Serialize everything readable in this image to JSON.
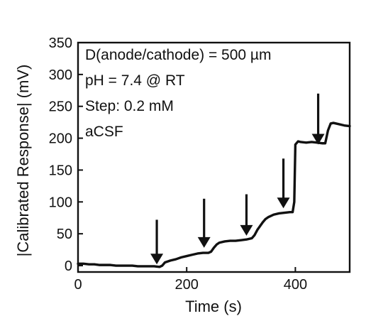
{
  "chart_data": {
    "type": "line",
    "xlabel": "Time (s)",
    "ylabel": "|Calibrated Response| (mV)",
    "xlim": [
      0,
      500
    ],
    "ylim": [
      -10,
      350
    ],
    "x_ticks": [
      0,
      200,
      400
    ],
    "y_ticks": [
      0,
      50,
      100,
      150,
      200,
      250,
      300,
      350
    ],
    "grid": false,
    "annotations": [
      "D(anode/cathode) = 500 µm",
      "pH = 7.4 @ RT",
      "Step: 0.2 mM",
      "aCSF"
    ],
    "arrows": [
      {
        "x": 145,
        "y_top": 72,
        "y_tip": 2
      },
      {
        "x": 232,
        "y_top": 105,
        "y_tip": 28
      },
      {
        "x": 310,
        "y_top": 112,
        "y_tip": 47
      },
      {
        "x": 378,
        "y_top": 168,
        "y_tip": 90
      },
      {
        "x": 442,
        "y_top": 270,
        "y_tip": 190
      }
    ],
    "series": [
      {
        "values": [
          [
            0,
            3
          ],
          [
            10,
            3
          ],
          [
            20,
            2
          ],
          [
            30,
            2
          ],
          [
            40,
            1
          ],
          [
            50,
            1
          ],
          [
            60,
            1
          ],
          [
            70,
            0
          ],
          [
            80,
            0
          ],
          [
            90,
            0
          ],
          [
            100,
            0
          ],
          [
            110,
            -1
          ],
          [
            120,
            -1
          ],
          [
            130,
            -1
          ],
          [
            140,
            -1
          ],
          [
            150,
            -2
          ],
          [
            155,
            0
          ],
          [
            160,
            5
          ],
          [
            170,
            8
          ],
          [
            180,
            10
          ],
          [
            190,
            13
          ],
          [
            200,
            15
          ],
          [
            210,
            17
          ],
          [
            220,
            19
          ],
          [
            230,
            20
          ],
          [
            240,
            20
          ],
          [
            245,
            22
          ],
          [
            250,
            28
          ],
          [
            255,
            33
          ],
          [
            260,
            36
          ],
          [
            270,
            38
          ],
          [
            280,
            39
          ],
          [
            290,
            39
          ],
          [
            300,
            40
          ],
          [
            310,
            41
          ],
          [
            320,
            43
          ],
          [
            325,
            48
          ],
          [
            330,
            56
          ],
          [
            335,
            62
          ],
          [
            340,
            68
          ],
          [
            345,
            73
          ],
          [
            350,
            76
          ],
          [
            360,
            80
          ],
          [
            370,
            82
          ],
          [
            380,
            83
          ],
          [
            390,
            84
          ],
          [
            395,
            84
          ],
          [
            398,
            100
          ],
          [
            400,
            190
          ],
          [
            405,
            195
          ],
          [
            410,
            194
          ],
          [
            420,
            193
          ],
          [
            430,
            194
          ],
          [
            440,
            193
          ],
          [
            450,
            192
          ],
          [
            455,
            192
          ],
          [
            460,
            212
          ],
          [
            465,
            223
          ],
          [
            470,
            224
          ],
          [
            480,
            222
          ],
          [
            490,
            220
          ],
          [
            500,
            219
          ]
        ]
      }
    ]
  }
}
